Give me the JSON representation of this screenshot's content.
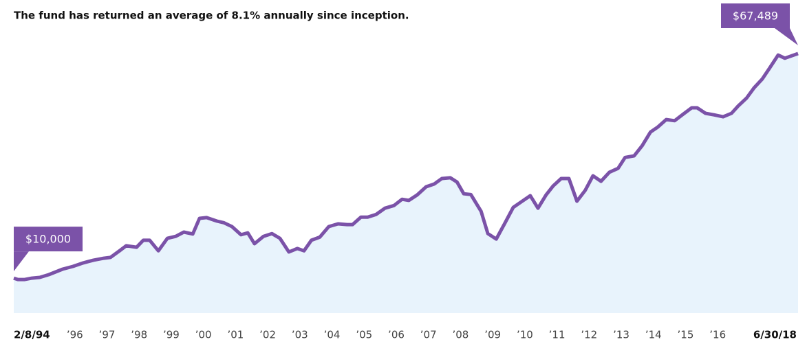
{
  "chart_data": {
    "type": "area",
    "title": "The fund has returned an average of 8.1% annually since inception.",
    "xlim": [
      1994.1,
      2018.5
    ],
    "xticks": [
      {
        "value": 1994.1,
        "label": "2/8/94"
      },
      {
        "value": 1996,
        "label": "’96"
      },
      {
        "value": 1997,
        "label": "’97"
      },
      {
        "value": 1998,
        "label": "’98"
      },
      {
        "value": 1999,
        "label": "’99"
      },
      {
        "value": 2000,
        "label": "’00"
      },
      {
        "value": 2001,
        "label": "’01"
      },
      {
        "value": 2002,
        "label": "’02"
      },
      {
        "value": 2003,
        "label": "’03"
      },
      {
        "value": 2004,
        "label": "’04"
      },
      {
        "value": 2005,
        "label": "’05"
      },
      {
        "value": 2006,
        "label": "’06"
      },
      {
        "value": 2007,
        "label": "’07"
      },
      {
        "value": 2008,
        "label": "’08"
      },
      {
        "value": 2009,
        "label": "’09"
      },
      {
        "value": 2010,
        "label": "’10"
      },
      {
        "value": 2011,
        "label": "’11"
      },
      {
        "value": 2012,
        "label": "’12"
      },
      {
        "value": 2013,
        "label": "’13"
      },
      {
        "value": 2014,
        "label": "’14"
      },
      {
        "value": 2015,
        "label": "’15"
      },
      {
        "value": 2016,
        "label": "’16"
      },
      {
        "value": 2018.5,
        "label": "6/30/18"
      }
    ],
    "ylim": [
      0,
      70000
    ],
    "color": "#7b52a8",
    "fill": "#e8f3fc",
    "x": [
      1994.1,
      1994.23,
      1994.44,
      1994.66,
      1994.91,
      1995.19,
      1995.62,
      1995.94,
      1996.26,
      1996.58,
      1996.9,
      1997.11,
      1997.39,
      1997.6,
      1997.92,
      1998.13,
      1998.33,
      1998.6,
      1998.88,
      1999.14,
      1999.39,
      1999.67,
      1999.88,
      2000.1,
      2000.42,
      2000.63,
      2000.89,
      2001.17,
      2001.38,
      2001.59,
      2001.87,
      2002.13,
      2002.38,
      2002.66,
      2002.92,
      2003.13,
      2003.36,
      2003.62,
      2003.9,
      2004.19,
      2004.47,
      2004.64,
      2004.9,
      2005.11,
      2005.37,
      2005.65,
      2005.93,
      2006.18,
      2006.39,
      2006.65,
      2006.93,
      2007.18,
      2007.42,
      2007.68,
      2007.89,
      2008.1,
      2008.32,
      2008.64,
      2008.85,
      2009.11,
      2009.38,
      2009.64,
      2009.92,
      2010.17,
      2010.41,
      2010.66,
      2010.88,
      2011.13,
      2011.37,
      2011.62,
      2011.88,
      2012.12,
      2012.37,
      2012.63,
      2012.9,
      2013.12,
      2013.4,
      2013.65,
      2013.91,
      2014.14,
      2014.4,
      2014.66,
      2014.93,
      2015.19,
      2015.36,
      2015.62,
      2015.89,
      2016.17,
      2016.43,
      2016.64,
      2016.9,
      2017.13,
      2017.39,
      2017.6,
      2017.88,
      2018.09,
      2018.5
    ],
    "values": [
      10000,
      9650,
      9650,
      10000,
      10200,
      10900,
      12300,
      13000,
      13900,
      14600,
      15100,
      15300,
      17000,
      18300,
      17900,
      19700,
      19700,
      17000,
      20200,
      20700,
      21800,
      21300,
      25300,
      25500,
      24600,
      24200,
      23200,
      21100,
      21600,
      18800,
      20700,
      21400,
      20200,
      16700,
      17600,
      17000,
      19700,
      20500,
      23200,
      23900,
      23700,
      23700,
      25600,
      25600,
      26300,
      27900,
      28600,
      30200,
      29900,
      31300,
      33400,
      34100,
      35500,
      35700,
      34600,
      31600,
      31400,
      27100,
      21400,
      20000,
      24100,
      28100,
      29700,
      31100,
      27900,
      31300,
      33600,
      35500,
      35500,
      29700,
      32500,
      36200,
      34800,
      37100,
      38100,
      40900,
      41300,
      43900,
      47400,
      48700,
      50600,
      50300,
      52000,
      53600,
      53600,
      52200,
      51800,
      51300,
      52200,
      54100,
      56100,
      58700,
      61000,
      63600,
      67100,
      66300,
      67489
    ],
    "value_labels": [
      "$10,000",
      null,
      null,
      null,
      null,
      null,
      null,
      null,
      null,
      null,
      null,
      null,
      null,
      null,
      null,
      null,
      null,
      null,
      null,
      null,
      null,
      null,
      null,
      null,
      null,
      null,
      null,
      null,
      null,
      null,
      null,
      null,
      null,
      null,
      null,
      null,
      null,
      null,
      null,
      null,
      null,
      null,
      null,
      null,
      null,
      null,
      null,
      null,
      null,
      null,
      null,
      null,
      null,
      null,
      null,
      null,
      null,
      null,
      null,
      null,
      null,
      null,
      null,
      null,
      null,
      null,
      null,
      null,
      null,
      null,
      null,
      null,
      null,
      null,
      null,
      null,
      null,
      null,
      null,
      null,
      null,
      null,
      null,
      null,
      null,
      null,
      null,
      null,
      null,
      null,
      null,
      null,
      null,
      null,
      null,
      null,
      "$67,489"
    ]
  }
}
